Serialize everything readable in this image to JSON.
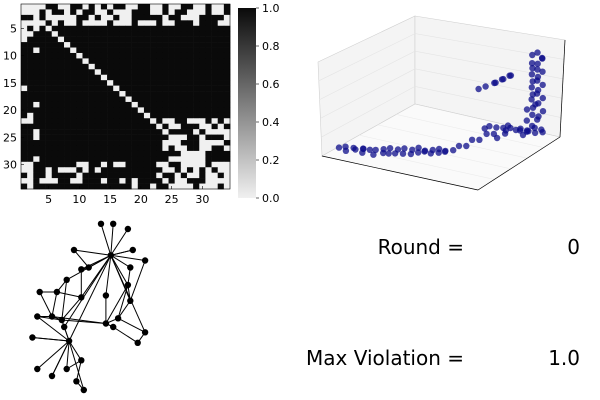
{
  "colors": {
    "heatmap_low": "#f0f0f0",
    "heatmap_high": "#0a0a0a",
    "scatter_point": "#0c0c8a",
    "pane_wall": "#f4f4f4",
    "graph_line": "#000000"
  },
  "chart_data": [
    {
      "type": "heatmap",
      "title": "",
      "xlabel": "",
      "ylabel": "",
      "size": 34,
      "value_range": [
        0,
        1
      ],
      "x_ticks": [
        5,
        10,
        15,
        20,
        25,
        30
      ],
      "y_ticks": [
        5,
        10,
        15,
        20,
        25,
        30
      ],
      "colorbar_ticks": [
        "0.0",
        "0.2",
        "0.4",
        "0.6",
        "0.8",
        "1.0"
      ],
      "colormap": "grayscale: 0 light, 1 dark",
      "structure": "mostly 1; diagonal 0; scattered 0 cells along top rows and left columns; upper-right block of lower-right rows sparse with 0s"
    },
    {
      "type": "scatter",
      "projection": "3d",
      "title": "",
      "grid": true,
      "axes_labels": "none",
      "series": [
        {
          "color": "#0c0c8a",
          "points": [
            [
              0.05,
              0.9,
              0.05
            ],
            [
              0.08,
              0.88,
              0.06
            ],
            [
              0.1,
              0.91,
              0.04
            ],
            [
              0.12,
              0.86,
              0.05
            ],
            [
              0.15,
              0.89,
              0.06
            ],
            [
              0.17,
              0.84,
              0.05
            ],
            [
              0.19,
              0.87,
              0.07
            ],
            [
              0.2,
              0.9,
              0.05
            ],
            [
              0.22,
              0.85,
              0.06
            ],
            [
              0.24,
              0.82,
              0.05
            ],
            [
              0.26,
              0.88,
              0.04
            ],
            [
              0.28,
              0.8,
              0.06
            ],
            [
              0.3,
              0.84,
              0.05
            ],
            [
              0.31,
              0.78,
              0.07
            ],
            [
              0.33,
              0.83,
              0.05
            ],
            [
              0.35,
              0.76,
              0.06
            ],
            [
              0.36,
              0.81,
              0.05
            ],
            [
              0.38,
              0.74,
              0.07
            ],
            [
              0.4,
              0.79,
              0.05
            ],
            [
              0.42,
              0.72,
              0.06
            ],
            [
              0.44,
              0.77,
              0.05
            ],
            [
              0.45,
              0.7,
              0.08
            ],
            [
              0.47,
              0.74,
              0.06
            ],
            [
              0.48,
              0.68,
              0.05
            ],
            [
              0.5,
              0.72,
              0.07
            ],
            [
              0.52,
              0.66,
              0.06
            ],
            [
              0.53,
              0.7,
              0.05
            ],
            [
              0.55,
              0.64,
              0.07
            ],
            [
              0.57,
              0.68,
              0.06
            ],
            [
              0.58,
              0.62,
              0.05
            ],
            [
              0.6,
              0.66,
              0.07
            ],
            [
              0.62,
              0.6,
              0.06
            ],
            [
              0.63,
              0.55,
              0.08
            ],
            [
              0.65,
              0.5,
              0.06
            ],
            [
              0.66,
              0.45,
              0.1
            ],
            [
              0.68,
              0.4,
              0.08
            ],
            [
              0.7,
              0.35,
              0.12
            ],
            [
              0.72,
              0.3,
              0.1
            ],
            [
              0.73,
              0.28,
              0.05
            ],
            [
              0.75,
              0.22,
              0.07
            ],
            [
              0.6,
              0.2,
              0.06
            ],
            [
              0.62,
              0.18,
              0.08
            ],
            [
              0.65,
              0.15,
              0.06
            ],
            [
              0.68,
              0.12,
              0.05
            ],
            [
              0.7,
              0.1,
              0.07
            ],
            [
              0.72,
              0.16,
              0.06
            ],
            [
              0.74,
              0.14,
              0.08
            ],
            [
              0.76,
              0.11,
              0.05
            ],
            [
              0.78,
              0.09,
              0.06
            ],
            [
              0.8,
              0.13,
              0.07
            ],
            [
              0.82,
              0.08,
              0.05
            ],
            [
              0.84,
              0.1,
              0.06
            ],
            [
              0.86,
              0.06,
              0.08
            ],
            [
              0.88,
              0.09,
              0.05
            ],
            [
              0.9,
              0.05,
              0.07
            ],
            [
              0.92,
              0.07,
              0.06
            ],
            [
              0.9,
              0.1,
              0.2
            ],
            [
              0.92,
              0.12,
              0.25
            ],
            [
              0.94,
              0.1,
              0.3
            ],
            [
              0.9,
              0.15,
              0.35
            ],
            [
              0.93,
              0.14,
              0.4
            ],
            [
              0.95,
              0.12,
              0.45
            ],
            [
              0.91,
              0.17,
              0.5
            ],
            [
              0.94,
              0.16,
              0.55
            ],
            [
              0.96,
              0.14,
              0.6
            ],
            [
              0.92,
              0.19,
              0.65
            ],
            [
              0.95,
              0.18,
              0.7
            ],
            [
              0.97,
              0.16,
              0.75
            ],
            [
              0.93,
              0.21,
              0.8
            ],
            [
              0.96,
              0.2,
              0.85
            ],
            [
              0.98,
              0.18,
              0.9
            ],
            [
              0.94,
              0.23,
              0.95
            ],
            [
              0.97,
              0.22,
              0.98
            ],
            [
              0.99,
              0.2,
              0.92
            ],
            [
              0.95,
              0.25,
              0.88
            ],
            [
              0.98,
              0.24,
              0.82
            ],
            [
              0.96,
              0.27,
              0.78
            ],
            [
              0.99,
              0.26,
              0.72
            ],
            [
              0.97,
              0.29,
              0.66
            ],
            [
              1.0,
              0.28,
              0.6
            ],
            [
              0.98,
              0.31,
              0.55
            ],
            [
              1.0,
              0.3,
              0.5
            ],
            [
              0.96,
              0.33,
              0.45
            ],
            [
              0.99,
              0.32,
              0.4
            ],
            [
              0.97,
              0.35,
              0.35
            ],
            [
              1.0,
              0.34,
              0.3
            ],
            [
              0.98,
              0.37,
              0.25
            ],
            [
              0.95,
              0.36,
              0.2
            ],
            [
              0.78,
              0.4,
              0.7
            ],
            [
              0.8,
              0.42,
              0.72
            ],
            [
              0.82,
              0.38,
              0.74
            ],
            [
              0.84,
              0.4,
              0.76
            ],
            [
              0.86,
              0.36,
              0.78
            ],
            [
              0.88,
              0.38,
              0.8
            ],
            [
              0.75,
              0.45,
              0.68
            ],
            [
              0.72,
              0.48,
              0.66
            ]
          ]
        }
      ]
    },
    {
      "type": "graph",
      "title": "",
      "nodes": [
        [
          0.31,
          0.05
        ],
        [
          0.36,
          0.05
        ],
        [
          0.42,
          0.08
        ],
        [
          0.44,
          0.2
        ],
        [
          0.43,
          0.3
        ],
        [
          0.49,
          0.26
        ],
        [
          0.2,
          0.2
        ],
        [
          0.23,
          0.31
        ],
        [
          0.17,
          0.37
        ],
        [
          0.06,
          0.44
        ],
        [
          0.13,
          0.44
        ],
        [
          0.23,
          0.47
        ],
        [
          0.05,
          0.58
        ],
        [
          0.11,
          0.58
        ],
        [
          0.15,
          0.6
        ],
        [
          0.33,
          0.46
        ],
        [
          0.33,
          0.62
        ],
        [
          0.38,
          0.59
        ],
        [
          0.43,
          0.49
        ],
        [
          0.42,
          0.4
        ],
        [
          0.36,
          0.64
        ],
        [
          0.46,
          0.73
        ],
        [
          0.05,
          0.88
        ],
        [
          0.16,
          0.64
        ],
        [
          0.17,
          0.88
        ],
        [
          0.21,
          0.95
        ],
        [
          0.23,
          0.83
        ],
        [
          0.24,
          1.0
        ],
        [
          0.18,
          0.72
        ],
        [
          0.11,
          0.92
        ],
        [
          0.49,
          0.67
        ],
        [
          0.03,
          0.7
        ],
        [
          0.26,
          0.3
        ],
        [
          0.35,
          0.23
        ]
      ],
      "edges": [
        [
          0,
          33
        ],
        [
          1,
          33
        ],
        [
          2,
          33
        ],
        [
          3,
          33
        ],
        [
          4,
          33
        ],
        [
          5,
          33
        ],
        [
          6,
          33
        ],
        [
          7,
          33
        ],
        [
          8,
          33
        ],
        [
          9,
          10
        ],
        [
          10,
          13
        ],
        [
          11,
          33
        ],
        [
          12,
          13
        ],
        [
          13,
          14
        ],
        [
          13,
          16
        ],
        [
          14,
          16
        ],
        [
          15,
          33
        ],
        [
          16,
          17
        ],
        [
          16,
          19
        ],
        [
          17,
          19
        ],
        [
          18,
          33
        ],
        [
          19,
          33
        ],
        [
          20,
          21
        ],
        [
          21,
          30
        ],
        [
          17,
          30
        ],
        [
          16,
          20
        ],
        [
          22,
          28
        ],
        [
          28,
          33
        ],
        [
          28,
          24
        ],
        [
          24,
          26
        ],
        [
          26,
          28
        ],
        [
          25,
          26
        ],
        [
          25,
          27
        ],
        [
          27,
          28
        ],
        [
          28,
          29
        ],
        [
          29,
          28
        ],
        [
          28,
          31
        ],
        [
          28,
          12
        ],
        [
          28,
          14
        ],
        [
          28,
          23
        ],
        [
          23,
          33
        ],
        [
          31,
          28
        ],
        [
          32,
          33
        ],
        [
          32,
          7
        ],
        [
          11,
          14
        ],
        [
          8,
          14
        ],
        [
          10,
          11
        ],
        [
          6,
          32
        ],
        [
          5,
          18
        ],
        [
          4,
          19
        ],
        [
          3,
          33
        ],
        [
          19,
          18
        ],
        [
          15,
          16
        ],
        [
          17,
          18
        ],
        [
          23,
          14
        ],
        [
          9,
          13
        ],
        [
          12,
          14
        ],
        [
          8,
          10
        ],
        [
          7,
          11
        ],
        [
          30,
          33
        ]
      ]
    }
  ],
  "round": {
    "label": "Round =",
    "value": "0"
  },
  "max_violation": {
    "label": "Max Violation =",
    "value": "1.0"
  }
}
